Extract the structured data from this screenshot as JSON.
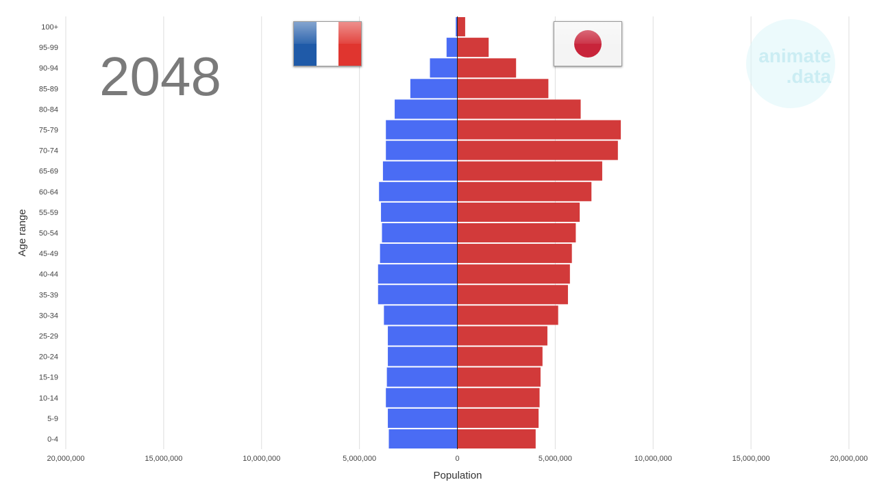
{
  "chart_data": {
    "type": "bar",
    "orientation": "horizontal-population-pyramid",
    "year": "2048",
    "categories": [
      "100+",
      "95-99",
      "90-94",
      "85-89",
      "80-84",
      "75-79",
      "70-74",
      "65-69",
      "60-64",
      "55-59",
      "50-54",
      "45-49",
      "40-44",
      "35-39",
      "30-34",
      "25-29",
      "20-24",
      "15-19",
      "10-14",
      "5-9",
      "0-4"
    ],
    "series": [
      {
        "side": "left",
        "color": "#4a6cf4",
        "values": [
          80000,
          550000,
          1400000,
          2400000,
          3200000,
          3650000,
          3650000,
          3800000,
          4000000,
          3900000,
          3850000,
          3950000,
          4050000,
          4050000,
          3750000,
          3550000,
          3550000,
          3600000,
          3650000,
          3550000,
          3500000
        ]
      },
      {
        "side": "right",
        "color": "#d23a3a",
        "values": [
          400000,
          1600000,
          3000000,
          4650000,
          6300000,
          8350000,
          8200000,
          7400000,
          6850000,
          6250000,
          6050000,
          5850000,
          5750000,
          5650000,
          5150000,
          4600000,
          4350000,
          4250000,
          4200000,
          4150000,
          4000000
        ]
      }
    ],
    "xlim": [
      -20000000,
      20000000
    ],
    "x_ticks": [
      -20000000,
      -15000000,
      -10000000,
      -5000000,
      0,
      5000000,
      10000000,
      15000000,
      20000000
    ],
    "x_tick_labels": [
      "20,000,000",
      "15,000,000",
      "10,000,000",
      "5,000,000",
      "0",
      "5,000,000",
      "10,000,000",
      "15,000,000",
      "20,000,000"
    ],
    "xlabel": "Population",
    "ylabel": "Age range",
    "grid": "vertical",
    "legend": "flags"
  },
  "flags": {
    "left": {
      "country_icon": "france-flag-icon",
      "colors": [
        "#1f5aa8",
        "#ffffff",
        "#e0352f"
      ]
    },
    "right": {
      "country_icon": "japan-flag-icon",
      "colors": [
        "#f4f4f4",
        "#c8243a"
      ]
    }
  },
  "watermark": {
    "line1": "animate",
    "line2": ".data"
  }
}
